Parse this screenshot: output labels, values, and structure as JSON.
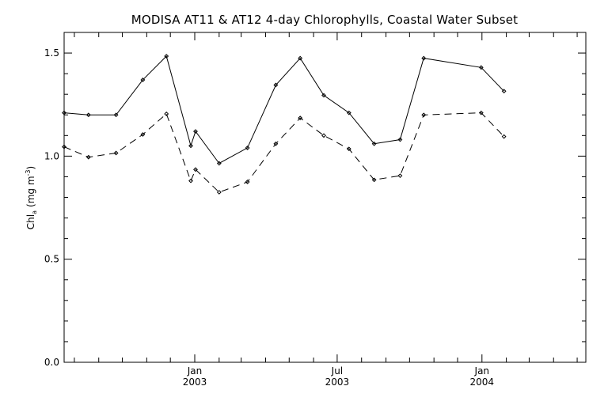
{
  "chart_data": {
    "type": "line",
    "title": "MODISA AT11 & AT12 4-day Chlorophylls, Coastal Water Subset",
    "ylabel": "Chl",
    "ylabel_subscript": "a",
    "ylabel_units": "(mg m",
    "ylabel_units_exponent": "-3",
    "ylabel_units_close": ")",
    "xlabel": "",
    "ylim": [
      0,
      1.6
    ],
    "xlim": [
      "2002-07-19",
      "2004-05-12"
    ],
    "grid": false,
    "legend": "none",
    "y_ticks": [
      "0.0",
      "0.5",
      "1.0",
      "1.5"
    ],
    "y_tick_values": [
      0,
      0.5,
      1.0,
      1.5
    ],
    "x_ticks": [
      {
        "date": "2003-01-01",
        "month": "Jan",
        "year": "2003"
      },
      {
        "date": "2003-07-01",
        "month": "Jul",
        "year": "2003"
      },
      {
        "date": "2004-01-01",
        "month": "Jan",
        "year": "2004"
      }
    ],
    "x_minor_dates": [
      "2002-08-01",
      "2002-09-01",
      "2002-10-01",
      "2002-11-01",
      "2002-12-01",
      "2003-02-01",
      "2003-03-01",
      "2003-04-01",
      "2003-05-01",
      "2003-06-01",
      "2003-08-01",
      "2003-09-01",
      "2003-10-01",
      "2003-11-01",
      "2003-12-01",
      "2004-02-01",
      "2004-03-01",
      "2004-04-01",
      "2004-05-01"
    ],
    "series": [
      {
        "line_style": "solid",
        "color": "#000000",
        "points": [
          {
            "x": "2002-07-19",
            "y": 1.21
          },
          {
            "x": "2002-08-19",
            "y": 1.2
          },
          {
            "x": "2002-09-23",
            "y": 1.2
          },
          {
            "x": "2002-10-27",
            "y": 1.37
          },
          {
            "x": "2002-11-26",
            "y": 1.485
          },
          {
            "x": "2002-12-27",
            "y": 1.05
          },
          {
            "x": "2003-01-02",
            "y": 1.12
          },
          {
            "x": "2003-02-01",
            "y": 0.965
          },
          {
            "x": "2003-03-09",
            "y": 1.04
          },
          {
            "x": "2003-04-14",
            "y": 1.345
          },
          {
            "x": "2003-05-15",
            "y": 1.475
          },
          {
            "x": "2003-06-14",
            "y": 1.295
          },
          {
            "x": "2003-07-16",
            "y": 1.21
          },
          {
            "x": "2003-08-17",
            "y": 1.06
          },
          {
            "x": "2003-09-19",
            "y": 1.08
          },
          {
            "x": "2003-10-19",
            "y": 1.475
          },
          {
            "x": "2003-12-31",
            "y": 1.43
          },
          {
            "x": "2004-01-29",
            "y": 1.315
          }
        ]
      },
      {
        "line_style": "dashed",
        "color": "#000000",
        "points": [
          {
            "x": "2002-07-19",
            "y": 1.045
          },
          {
            "x": "2002-08-19",
            "y": 0.995
          },
          {
            "x": "2002-09-23",
            "y": 1.015
          },
          {
            "x": "2002-10-27",
            "y": 1.105
          },
          {
            "x": "2002-11-26",
            "y": 1.205
          },
          {
            "x": "2002-12-27",
            "y": 0.88
          },
          {
            "x": "2003-01-02",
            "y": 0.935
          },
          {
            "x": "2003-02-01",
            "y": 0.825
          },
          {
            "x": "2003-03-09",
            "y": 0.875
          },
          {
            "x": "2003-04-14",
            "y": 1.06
          },
          {
            "x": "2003-05-15",
            "y": 1.185
          },
          {
            "x": "2003-06-14",
            "y": 1.1
          },
          {
            "x": "2003-07-16",
            "y": 1.035
          },
          {
            "x": "2003-08-17",
            "y": 0.885
          },
          {
            "x": "2003-09-19",
            "y": 0.905
          },
          {
            "x": "2003-10-19",
            "y": 1.2
          },
          {
            "x": "2003-12-31",
            "y": 1.21
          },
          {
            "x": "2004-01-29",
            "y": 1.095
          }
        ]
      }
    ]
  }
}
